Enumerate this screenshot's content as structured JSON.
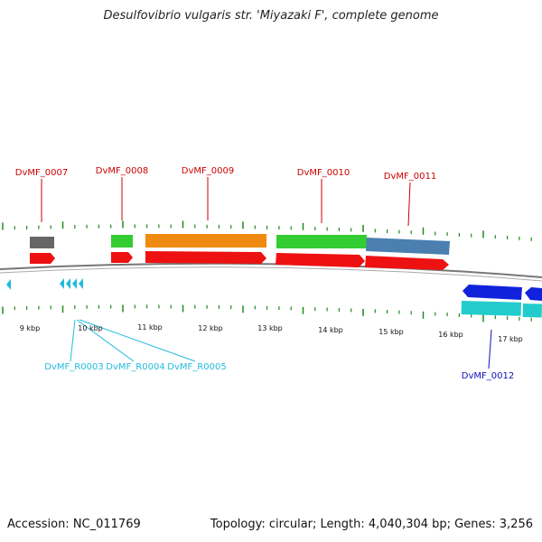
{
  "title": "Desulfovibrio vulgaris str. 'Miyazaki F', complete genome",
  "footer": {
    "accession": "Accession: NC_011769",
    "summary": "Topology: circular; Length: 4,040,304 bp; Genes: 3,256"
  },
  "colors": {
    "cds_red": "#ee1111",
    "gene_label_red": "#cc0000",
    "rna_label_cyan": "#22bbdd",
    "minus_label_blue": "#1111bb",
    "tick_green": "#228822",
    "backbone": "#777777"
  },
  "scale_labels": [
    "9 kbp",
    "10 kbp",
    "11 kbp",
    "12 kbp",
    "13 kbp",
    "14 kbp",
    "15 kbp",
    "16 kbp",
    "17 kbp"
  ],
  "upper_gene_labels": [
    "DvMF_0007",
    "DvMF_0008",
    "DvMF_0009",
    "DvMF_0010",
    "DvMF_0011"
  ],
  "rna_labels": [
    "DvMF_R0003",
    "DvMF_R0004",
    "DvMF_R0005"
  ],
  "lower_gene_labels": [
    "DvMF_0012"
  ]
}
